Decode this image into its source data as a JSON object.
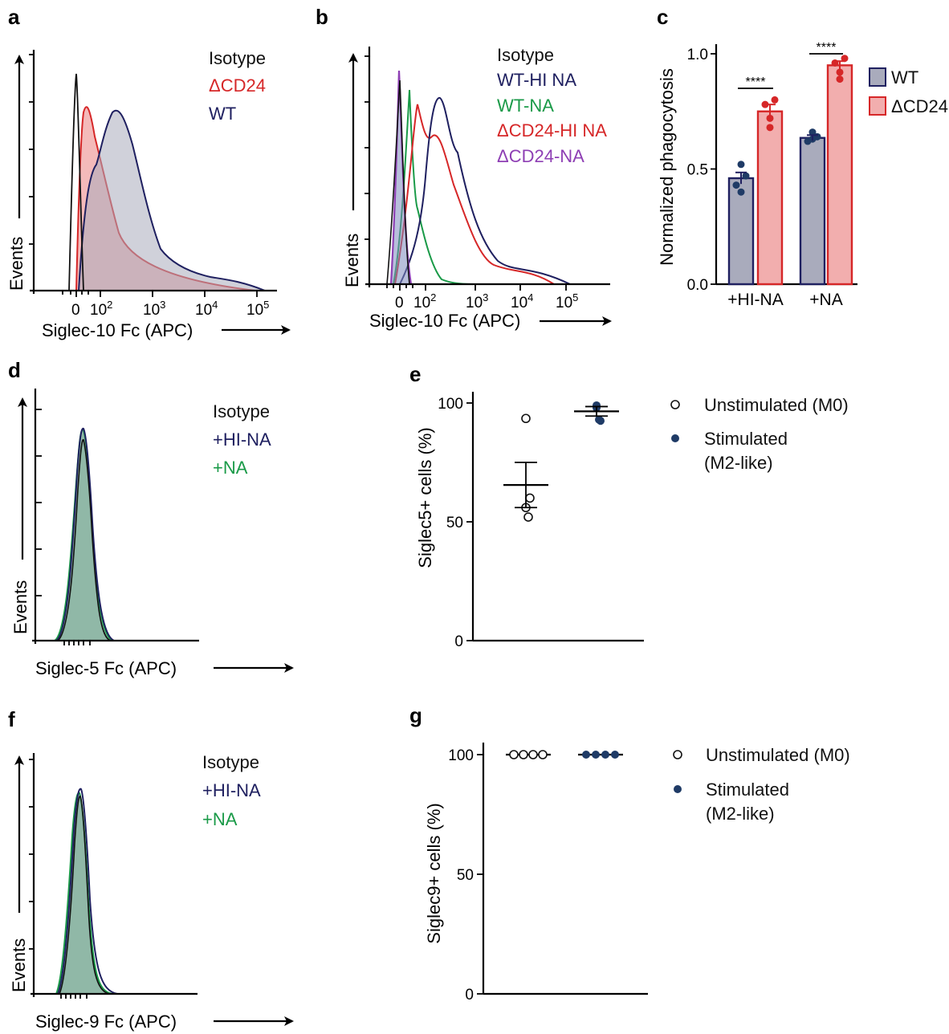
{
  "colors": {
    "black": "#111111",
    "red": "#d62728",
    "navy": "#1f2060",
    "green": "#1a9a48",
    "purple": "#8e3fb4",
    "wt_fill": "#a9abbc",
    "dcd24_fill": "#f2aeae",
    "dot_navy": "#1f3b66"
  },
  "panels": {
    "a": {
      "label": "a",
      "xlabel": "Siglec-10 Fc (APC)",
      "ylabel": "Events",
      "ticks": {
        "t0": "0",
        "t2": "10",
        "t2e": "2",
        "t3": "10",
        "t3e": "3",
        "t4": "10",
        "t4e": "4",
        "t5": "10",
        "t5e": "5"
      },
      "legend": [
        "Isotype",
        "ΔCD24",
        "WT"
      ]
    },
    "b": {
      "label": "b",
      "xlabel": "Siglec-10 Fc (APC)",
      "ylabel": "Events",
      "ticks": {
        "t0": "0",
        "t2": "10",
        "t2e": "2",
        "t3": "10",
        "t3e": "3",
        "t4": "10",
        "t4e": "4",
        "t5": "10",
        "t5e": "5"
      },
      "legend": [
        "Isotype",
        "WT-HI NA",
        "WT-NA",
        "ΔCD24-HI NA",
        "ΔCD24-NA"
      ]
    },
    "c": {
      "label": "c"
    },
    "d": {
      "label": "d",
      "xlabel": "Siglec-5 Fc (APC)",
      "ylabel": "Events",
      "legend": [
        "Isotype",
        "+HI-NA",
        "+NA"
      ]
    },
    "e": {
      "label": "e"
    },
    "f": {
      "label": "f",
      "xlabel": "Siglec-9 Fc (APC)",
      "ylabel": "Events",
      "legend": [
        "Isotype",
        "+HI-NA",
        "+NA"
      ]
    },
    "g": {
      "label": "g"
    }
  },
  "chart_data": [
    {
      "id": "c",
      "type": "bar",
      "categories": [
        "+HI-NA",
        "+NA"
      ],
      "ylabel": "Normalized phagocytosis",
      "ylim": [
        0,
        1.0
      ],
      "yticks": [
        "0.0",
        "0.5",
        "1.0"
      ],
      "series": [
        {
          "name": "WT",
          "values": [
            0.46,
            0.635
          ],
          "sem": [
            0.025,
            0.012
          ],
          "points": [
            [
              0.43,
              0.4,
              0.47,
              0.52
            ],
            [
              0.62,
              0.63,
              0.64,
              0.66
            ]
          ]
        },
        {
          "name": "ΔCD24",
          "values": [
            0.75,
            0.95
          ],
          "sem": [
            0.03,
            0.018
          ],
          "points": [
            [
              0.78,
              0.72,
              0.8,
              0.68
            ],
            [
              0.96,
              0.92,
              0.98,
              0.89
            ]
          ]
        }
      ],
      "significance": [
        "****",
        "****"
      ]
    },
    {
      "id": "e",
      "type": "scatter",
      "ylabel": "Siglec5+ cells (%)",
      "ylim": [
        0,
        100
      ],
      "yticks": [
        "0",
        "50",
        "100"
      ],
      "series": [
        {
          "name": "Unstimulated (M0)",
          "mean": 65.5,
          "sem": 9.5,
          "points": [
            93.5,
            56,
            60,
            52
          ]
        },
        {
          "name": "Stimulated (M2-like)",
          "mean": 96.5,
          "sem": 2,
          "points": [
            99,
            98,
            92.5,
            93
          ]
        }
      ],
      "legend": [
        "Unstimulated (M0)",
        "Stimulated",
        "(M2-like)"
      ]
    },
    {
      "id": "g",
      "type": "scatter",
      "ylabel": "Siglec9+ cells (%)",
      "ylim": [
        0,
        100
      ],
      "yticks": [
        "0",
        "50",
        "100"
      ],
      "series": [
        {
          "name": "Unstimulated (M0)",
          "mean": 100,
          "sem": 0,
          "points": [
            100,
            100,
            100,
            100
          ]
        },
        {
          "name": "Stimulated (M2-like)",
          "mean": 100,
          "sem": 0,
          "points": [
            100,
            100,
            100,
            100
          ]
        }
      ],
      "legend": [
        "Unstimulated (M0)",
        "Stimulated",
        "(M2-like)"
      ]
    }
  ]
}
